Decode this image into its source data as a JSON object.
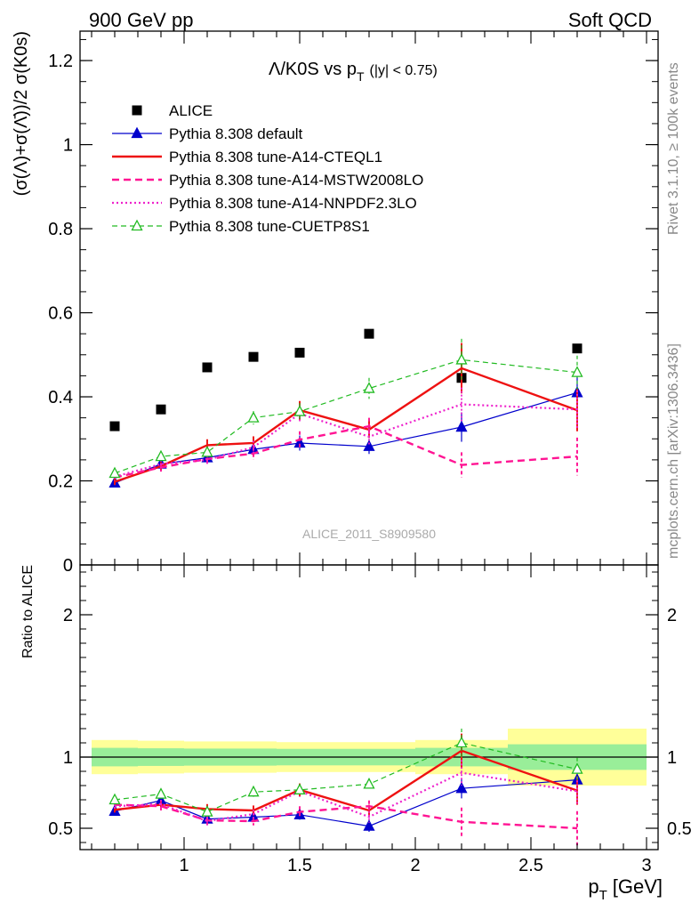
{
  "header": {
    "left": "900 GeV pp",
    "right": "Soft QCD"
  },
  "side_notes": {
    "rivet": "Rivet 3.1.10, ≥ 100k events",
    "mcplots": "mcplots.cern.ch [arXiv:1306.3436]"
  },
  "chart_data": [
    {
      "type": "scatter",
      "title": "Λ/K0S vs pT (|y| < 0.75)",
      "title_parts": {
        "main": "Λ/K0S vs p",
        "sub": "T",
        "range": "(|y| < 0.75)"
      },
      "ylabel": "(σ(Λ)+σ(Λ̄))/2 σ(K0s)",
      "xlabel": "",
      "watermark": "ALICE_2011_S8909580",
      "xlim": [
        0.55,
        3.05
      ],
      "ylim": [
        0,
        1.27
      ],
      "yticks": [
        0,
        0.2,
        0.4,
        0.6,
        0.8,
        1,
        1.2
      ],
      "ytick_labels": [
        "0",
        "0.2",
        "0.4",
        "0.6",
        "0.8",
        "1",
        "1.2"
      ],
      "legend_position": "top-left",
      "series": [
        {
          "name": "ALICE",
          "color": "#000000",
          "style": "marker-square",
          "x": [
            0.7,
            0.9,
            1.1,
            1.3,
            1.5,
            1.8,
            2.2,
            2.7
          ],
          "y": [
            0.33,
            0.37,
            0.47,
            0.495,
            0.505,
            0.55,
            0.445,
            0.515
          ]
        },
        {
          "name": "Pythia 8.308 default",
          "color": "#0000cc",
          "style": "solid-thin-triangle",
          "x": [
            0.7,
            0.9,
            1.1,
            1.3,
            1.5,
            1.8,
            2.2,
            2.7
          ],
          "y": [
            0.195,
            0.24,
            0.255,
            0.275,
            0.29,
            0.282,
            0.328,
            0.41
          ],
          "err": [
            0.008,
            0.01,
            0.012,
            0.015,
            0.018,
            0.018,
            0.035,
            0.045
          ]
        },
        {
          "name": "Pythia 8.308 tune-A14-CTEQL1",
          "color": "#ee1111",
          "style": "solid-thick",
          "x": [
            0.7,
            0.9,
            1.1,
            1.3,
            1.5,
            1.8,
            2.2,
            2.7
          ],
          "y": [
            0.198,
            0.235,
            0.285,
            0.29,
            0.368,
            0.322,
            0.468,
            0.368
          ],
          "err": [
            0.008,
            0.01,
            0.014,
            0.016,
            0.022,
            0.02,
            0.06,
            0.05
          ]
        },
        {
          "name": "Pythia 8.308 tune-A14-MSTW2008LO",
          "color": "#ff1493",
          "style": "dashed-thick",
          "x": [
            0.7,
            0.9,
            1.1,
            1.3,
            1.5,
            1.8,
            2.2,
            2.7
          ],
          "y": [
            0.208,
            0.232,
            0.252,
            0.265,
            0.298,
            0.33,
            0.238,
            0.258
          ],
          "err": [
            0.008,
            0.01,
            0.012,
            0.015,
            0.02,
            0.02,
            0.03,
            0.045
          ]
        },
        {
          "name": "Pythia 8.308 tune-A14-NNPDF2.3LO",
          "color": "#ee22cc",
          "style": "dotted",
          "x": [
            0.7,
            0.9,
            1.1,
            1.3,
            1.5,
            1.8,
            2.2,
            2.7
          ],
          "y": [
            0.21,
            0.24,
            0.25,
            0.28,
            0.36,
            0.305,
            0.382,
            0.37
          ],
          "err": [
            0.008,
            0.01,
            0.012,
            0.015,
            0.02,
            0.02,
            0.04,
            0.045
          ]
        },
        {
          "name": "Pythia 8.308 tune-CUETP8S1",
          "color": "#22bb22",
          "style": "dashed-thin-open-triangle",
          "x": [
            0.7,
            0.9,
            1.1,
            1.3,
            1.5,
            1.8,
            2.2,
            2.7
          ],
          "y": [
            0.218,
            0.258,
            0.268,
            0.35,
            0.365,
            0.42,
            0.488,
            0.458
          ],
          "err": [
            0.008,
            0.01,
            0.012,
            0.016,
            0.02,
            0.025,
            0.05,
            0.04
          ]
        }
      ]
    },
    {
      "type": "line",
      "title": "",
      "xlabel": "p_T [GeV]",
      "xlabel_parts": {
        "main": "p",
        "sub": "T",
        "unit": "[GeV]"
      },
      "ylabel": "Ratio to ALICE",
      "xlim": [
        0.55,
        3.05
      ],
      "ylim": [
        0.35,
        2.35
      ],
      "xticks": [
        1,
        1.5,
        2,
        2.5,
        3
      ],
      "xtick_labels": [
        "1",
        "1.5",
        "2",
        "2.5",
        "3"
      ],
      "yticks": [
        0.5,
        1,
        2
      ],
      "ytick_labels": [
        "0.5",
        "1",
        "2"
      ],
      "reference_line": 1,
      "bands": {
        "bin_edges": [
          0.6,
          0.8,
          1.0,
          1.2,
          1.4,
          1.6,
          2.0,
          2.4,
          3.0
        ],
        "inner": [
          0.065,
          0.062,
          0.06,
          0.06,
          0.058,
          0.058,
          0.065,
          0.09
        ],
        "outer": [
          0.12,
          0.115,
          0.11,
          0.11,
          0.105,
          0.105,
          0.12,
          0.2
        ],
        "inner_color": "#99ee99",
        "outer_color": "#ffff99"
      },
      "series": [
        {
          "name": "Pythia 8.308 default",
          "color": "#0000cc",
          "style": "solid-thin-triangle",
          "x": [
            0.7,
            0.9,
            1.1,
            1.3,
            1.5,
            1.8,
            2.2,
            2.7
          ],
          "y": [
            0.62,
            0.695,
            0.565,
            0.578,
            0.595,
            0.515,
            0.78,
            0.84
          ],
          "err": [
            0.02,
            0.03,
            0.03,
            0.03,
            0.035,
            0.04,
            0.07,
            0.08
          ]
        },
        {
          "name": "Pythia 8.308 tune-A14-CTEQL1",
          "color": "#ee1111",
          "style": "solid-thick",
          "x": [
            0.7,
            0.9,
            1.1,
            1.3,
            1.5,
            1.8,
            2.2,
            2.7
          ],
          "y": [
            0.63,
            0.665,
            0.635,
            0.625,
            0.77,
            0.625,
            1.045,
            0.765
          ],
          "err": [
            0.02,
            0.03,
            0.035,
            0.035,
            0.045,
            0.04,
            0.12,
            0.1
          ]
        },
        {
          "name": "Pythia 8.308 tune-A14-MSTW2008LO",
          "color": "#ff1493",
          "style": "dashed-thick",
          "x": [
            0.7,
            0.9,
            1.1,
            1.3,
            1.5,
            1.8,
            2.2,
            2.7
          ],
          "y": [
            0.665,
            0.655,
            0.555,
            0.55,
            0.615,
            0.655,
            0.545,
            0.5
          ],
          "err": [
            0.02,
            0.03,
            0.03,
            0.03,
            0.04,
            0.04,
            0.1,
            0.12
          ]
        },
        {
          "name": "Pythia 8.308 tune-A14-NNPDF2.3LO",
          "color": "#ee22cc",
          "style": "dotted",
          "x": [
            0.7,
            0.9,
            1.1,
            1.3,
            1.5,
            1.8,
            2.2,
            2.7
          ],
          "y": [
            0.655,
            0.67,
            0.55,
            0.6,
            0.76,
            0.58,
            0.89,
            0.76
          ],
          "err": [
            0.02,
            0.03,
            0.03,
            0.03,
            0.04,
            0.04,
            0.09,
            0.1
          ]
        },
        {
          "name": "Pythia 8.308 tune-CUETP8S1",
          "color": "#22bb22",
          "style": "dashed-thin-open-triangle",
          "x": [
            0.7,
            0.9,
            1.1,
            1.3,
            1.5,
            1.8,
            2.2,
            2.7
          ],
          "y": [
            0.7,
            0.74,
            0.615,
            0.755,
            0.77,
            0.81,
            1.1,
            0.915
          ],
          "err": [
            0.02,
            0.03,
            0.035,
            0.035,
            0.04,
            0.04,
            0.1,
            0.08
          ]
        }
      ]
    }
  ]
}
